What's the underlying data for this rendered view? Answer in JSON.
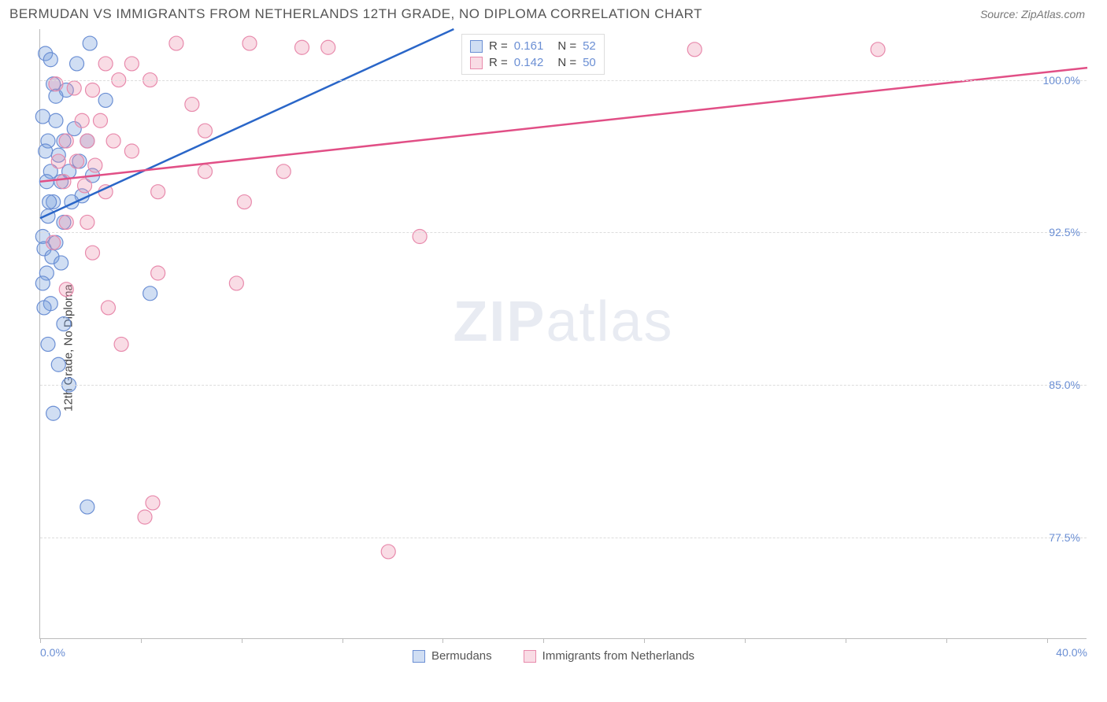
{
  "header": {
    "title": "BERMUDAN VS IMMIGRANTS FROM NETHERLANDS 12TH GRADE, NO DIPLOMA CORRELATION CHART",
    "source_label": "Source: ZipAtlas.com"
  },
  "chart": {
    "type": "scatter",
    "y_axis_label": "12th Grade, No Diploma",
    "background_color": "#ffffff",
    "grid_color": "#dddddd",
    "axis_color": "#bbbbbb",
    "tick_label_color": "#6b8fd4",
    "xlim": [
      0,
      40
    ],
    "ylim": [
      72.5,
      102.5
    ],
    "x_ticks": [
      0,
      3.85,
      7.7,
      11.55,
      15.38,
      19.23,
      23.08,
      26.92,
      30.77,
      34.62,
      38.46
    ],
    "x_tick_labels": [
      {
        "x": 0,
        "label": "0.0%"
      },
      {
        "x": 40,
        "label": "40.0%"
      }
    ],
    "y_grid": [
      {
        "y": 100.0,
        "label": "100.0%"
      },
      {
        "y": 92.5,
        "label": "92.5%"
      },
      {
        "y": 85.0,
        "label": "85.0%"
      },
      {
        "y": 77.5,
        "label": "77.5%"
      }
    ],
    "watermark": {
      "bold": "ZIP",
      "rest": "atlas"
    },
    "series": [
      {
        "id": "bermudans",
        "label": "Bermudans",
        "marker_fill": "rgba(120,160,220,0.35)",
        "marker_stroke": "#6b8fd4",
        "line_color": "#2a66c8",
        "line_width": 2.5,
        "marker_radius": 9,
        "R": "0.161",
        "N": "52",
        "trend": {
          "x1": 0,
          "y1": 93.2,
          "x2": 15.8,
          "y2": 102.5
        },
        "points": [
          [
            0.2,
            101.3
          ],
          [
            0.4,
            101.0
          ],
          [
            1.9,
            101.8
          ],
          [
            1.4,
            100.8
          ],
          [
            0.5,
            99.8
          ],
          [
            1.0,
            99.5
          ],
          [
            2.5,
            99.0
          ],
          [
            0.1,
            98.2
          ],
          [
            0.6,
            98.0
          ],
          [
            1.3,
            97.6
          ],
          [
            0.3,
            97.0
          ],
          [
            0.9,
            97.0
          ],
          [
            1.8,
            97.0
          ],
          [
            0.2,
            96.5
          ],
          [
            0.7,
            96.3
          ],
          [
            1.5,
            96.0
          ],
          [
            0.4,
            95.5
          ],
          [
            1.1,
            95.5
          ],
          [
            2.0,
            95.3
          ],
          [
            0.25,
            95.0
          ],
          [
            0.8,
            95.0
          ],
          [
            1.6,
            94.3
          ],
          [
            0.5,
            94.0
          ],
          [
            1.2,
            94.0
          ],
          [
            0.35,
            94.0
          ],
          [
            0.3,
            93.3
          ],
          [
            0.9,
            93.0
          ],
          [
            0.1,
            92.3
          ],
          [
            0.6,
            92.0
          ],
          [
            0.15,
            91.7
          ],
          [
            0.45,
            91.3
          ],
          [
            0.8,
            91.0
          ],
          [
            0.25,
            90.5
          ],
          [
            0.1,
            90.0
          ],
          [
            4.2,
            89.5
          ],
          [
            0.4,
            89.0
          ],
          [
            0.15,
            88.8
          ],
          [
            0.9,
            88.0
          ],
          [
            0.3,
            87.0
          ],
          [
            0.7,
            86.0
          ],
          [
            1.1,
            85.0
          ],
          [
            0.5,
            83.6
          ],
          [
            1.8,
            79.0
          ],
          [
            0.6,
            99.2
          ]
        ]
      },
      {
        "id": "netherlands",
        "label": "Immigrants from Netherlands",
        "marker_fill": "rgba(235,140,170,0.3)",
        "marker_stroke": "#e88aac",
        "line_color": "#e14f86",
        "line_width": 2.5,
        "marker_radius": 9,
        "R": "0.142",
        "N": "50",
        "trend": {
          "x1": 0,
          "y1": 95.0,
          "x2": 40,
          "y2": 100.6
        },
        "points": [
          [
            5.2,
            101.8
          ],
          [
            8.0,
            101.8
          ],
          [
            10.0,
            101.6
          ],
          [
            11.0,
            101.6
          ],
          [
            25.0,
            101.5
          ],
          [
            32.0,
            101.5
          ],
          [
            2.5,
            100.8
          ],
          [
            3.5,
            100.8
          ],
          [
            3.0,
            100.0
          ],
          [
            4.2,
            100.0
          ],
          [
            0.6,
            99.8
          ],
          [
            1.3,
            99.6
          ],
          [
            2.0,
            99.5
          ],
          [
            5.8,
            98.8
          ],
          [
            1.6,
            98.0
          ],
          [
            2.3,
            98.0
          ],
          [
            6.3,
            97.5
          ],
          [
            1.0,
            97.0
          ],
          [
            1.8,
            97.0
          ],
          [
            2.8,
            97.0
          ],
          [
            3.5,
            96.5
          ],
          [
            0.7,
            96.0
          ],
          [
            1.4,
            96.0
          ],
          [
            2.1,
            95.8
          ],
          [
            6.3,
            95.5
          ],
          [
            9.3,
            95.5
          ],
          [
            0.9,
            95.0
          ],
          [
            1.7,
            94.8
          ],
          [
            2.5,
            94.5
          ],
          [
            4.5,
            94.5
          ],
          [
            7.8,
            94.0
          ],
          [
            1.0,
            93.0
          ],
          [
            1.8,
            93.0
          ],
          [
            0.5,
            92.0
          ],
          [
            14.5,
            92.3
          ],
          [
            2.0,
            91.5
          ],
          [
            4.5,
            90.5
          ],
          [
            7.5,
            90.0
          ],
          [
            1.0,
            89.7
          ],
          [
            2.6,
            88.8
          ],
          [
            3.1,
            87.0
          ],
          [
            4.3,
            79.2
          ],
          [
            4.0,
            78.5
          ],
          [
            13.3,
            76.8
          ]
        ]
      }
    ],
    "stats_box": {
      "rows": [
        {
          "series": 0,
          "R_label": "R  =",
          "N_label": "N  ="
        },
        {
          "series": 1,
          "R_label": "R  =",
          "N_label": "N  ="
        }
      ]
    }
  }
}
